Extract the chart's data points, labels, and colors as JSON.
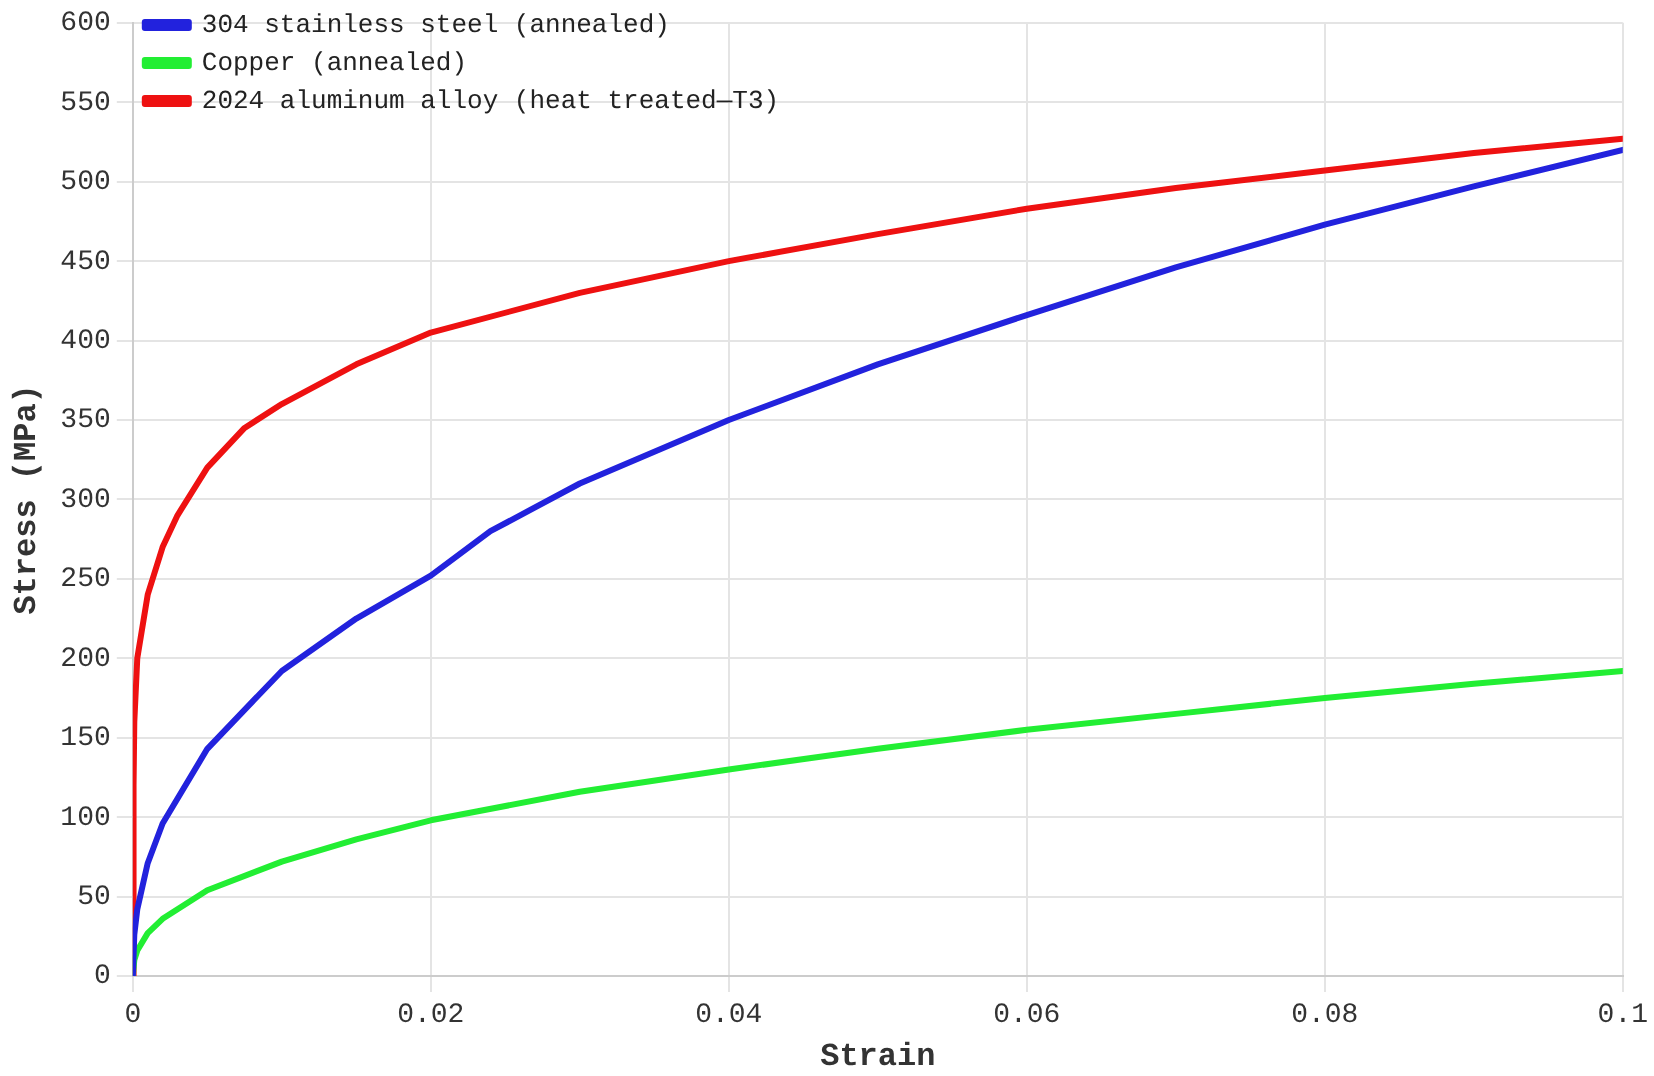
{
  "chart_data": {
    "type": "line",
    "xlabel": "Strain",
    "ylabel": "Stress (MPa)",
    "xlim": [
      0,
      0.1
    ],
    "xticks": [
      0,
      0.02,
      0.04,
      0.06,
      0.08,
      0.1
    ],
    "ylim": [
      0,
      600
    ],
    "yticks": [
      0,
      50,
      100,
      150,
      200,
      250,
      300,
      350,
      400,
      450,
      500,
      550,
      600
    ],
    "grid": true,
    "legend": "top left",
    "marker": "none",
    "line_style": "solid",
    "series": [
      {
        "name": "304 stainless steel (annealed)",
        "color": "#2222dd",
        "x": [
          0,
          0.0001,
          0.0003,
          0.001,
          0.002,
          0.005,
          0.01,
          0.015,
          0.02,
          0.024,
          0.03,
          0.04,
          0.05,
          0.06,
          0.07,
          0.08,
          0.09,
          0.1
        ],
        "values": [
          0,
          26,
          42,
          71,
          96,
          143,
          192,
          225,
          252,
          280,
          310,
          350,
          385,
          416,
          446,
          473,
          497,
          520
        ]
      },
      {
        "name": "Copper (annealed)",
        "color": "#22ee33",
        "x": [
          0,
          0.0001,
          0.0003,
          0.001,
          0.002,
          0.005,
          0.01,
          0.015,
          0.02,
          0.03,
          0.04,
          0.05,
          0.06,
          0.07,
          0.08,
          0.09,
          0.1
        ],
        "values": [
          0,
          10,
          16,
          27,
          36,
          54,
          72,
          86,
          98,
          116,
          130,
          143,
          155,
          165,
          175,
          184,
          192
        ]
      },
      {
        "name": "2024 aluminum alloy (heat treated—T3)",
        "color": "#ee1111",
        "x": [
          0,
          5e-05,
          0.0001,
          0.0003,
          0.001,
          0.002,
          0.003,
          0.005,
          0.0075,
          0.01,
          0.015,
          0.02,
          0.03,
          0.04,
          0.05,
          0.06,
          0.07,
          0.08,
          0.09,
          0.1
        ],
        "values": [
          0,
          120,
          160,
          200,
          240,
          270,
          290,
          320,
          345,
          360,
          385,
          405,
          430,
          450,
          467,
          483,
          496,
          507,
          518,
          527
        ]
      }
    ]
  }
}
